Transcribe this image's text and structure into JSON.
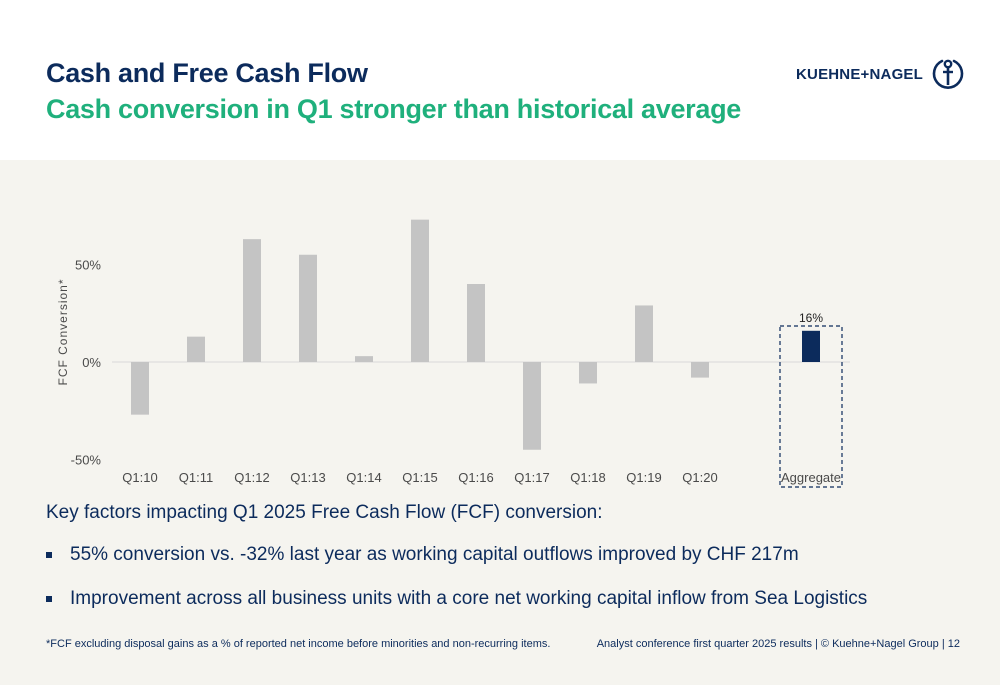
{
  "header": {
    "title": "Cash and Free Cash Flow",
    "subtitle": "Cash conversion in Q1 stronger than historical average"
  },
  "logo": {
    "text": "KUEHNE+NAGEL",
    "icon": "anchor-icon"
  },
  "chart_data": {
    "type": "bar",
    "ylabel": "FCF Conversion*",
    "ylim": [
      -50,
      75
    ],
    "yticks": [
      -50,
      0,
      50
    ],
    "ytick_labels": [
      "-50%",
      "0%",
      "50%"
    ],
    "grid": false,
    "categories": [
      "Q1:10",
      "Q1:11",
      "Q1:12",
      "Q1:13",
      "Q1:14",
      "Q1:15",
      "Q1:16",
      "Q1:17",
      "Q1:18",
      "Q1:19",
      "Q1:20"
    ],
    "values": [
      -27,
      13,
      63,
      55,
      3,
      73,
      40,
      -45,
      -11,
      29,
      -8
    ],
    "aggregate": {
      "label": "Aggregate",
      "value": 16,
      "value_label": "16%"
    },
    "colors": {
      "bars": "#c4c4c4",
      "aggregate": "#0c2b5c",
      "zero_line": "#d9d9d9"
    }
  },
  "factors": {
    "title": "Key factors impacting Q1 2025 Free Cash Flow (FCF) conversion:",
    "items": [
      "55% conversion vs. -32% last year as working capital outflows improved by CHF 217m",
      "Improvement across all business units with a core net working capital inflow from Sea Logistics"
    ]
  },
  "footer": {
    "footnote": "*FCF excluding disposal gains as a % of reported net income before minorities and non-recurring items.",
    "right": "Analyst conference first quarter 2025 results | © Kuehne+Nagel Group | 12"
  }
}
